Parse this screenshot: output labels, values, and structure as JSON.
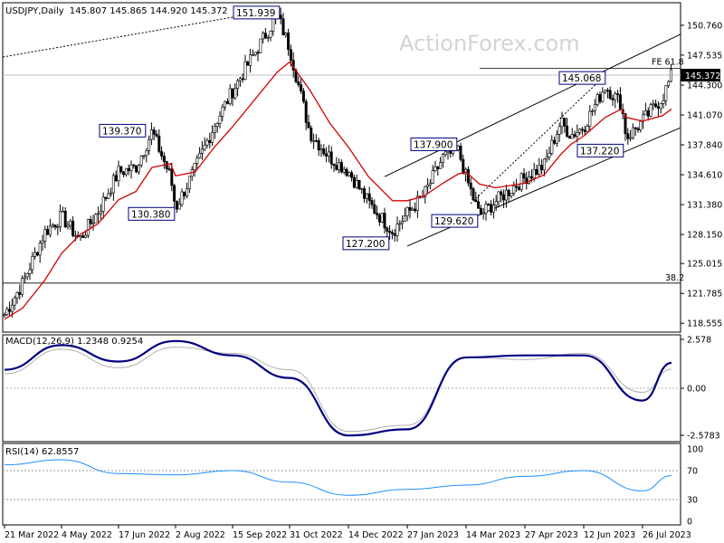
{
  "header": {
    "symbol": "USDJPY,Daily",
    "ohlc": "145.807 145.865 144.920 145.372"
  },
  "watermark": "ActionForex.com",
  "current_price_label": "145.372",
  "colors": {
    "candle": "#000000",
    "ma": "#d40000",
    "macd_line": "#000080",
    "macd_signal": "#b0b0b0",
    "rsi_line": "#1e90ff",
    "price_tag_bg": "#000000",
    "annotation_border": "#000080"
  },
  "chart_data": [
    {
      "type": "line",
      "name": "price",
      "title": "USDJPY,Daily",
      "x_ticks": [
        "21 Mar 2022",
        "4 May 2022",
        "17 Jun 2022",
        "2 Aug 2022",
        "15 Sep 2022",
        "31 Oct 2022",
        "14 Dec 2022",
        "27 Jan 2023",
        "14 Mar 2023",
        "27 Apr 2023",
        "12 Jun 2023",
        "26 Jul 2023"
      ],
      "y_ticks": [
        "150.760",
        "147.535",
        "144.300",
        "141.070",
        "137.840",
        "134.610",
        "131.380",
        "128.150",
        "125.015",
        "121.785",
        "118.555"
      ],
      "ylim": [
        117.6,
        153.2
      ],
      "x": [
        "21 Mar 2022",
        "4 Apr 2022",
        "21 Apr 2022",
        "4 May 2022",
        "18 May 2022",
        "1 Jun 2022",
        "17 Jun 2022",
        "1 Jul 2022",
        "14 Jul 2022",
        "29 Jul 2022",
        "2 Aug 2022",
        "17 Aug 2022",
        "1 Sep 2022",
        "15 Sep 2022",
        "21 Oct 2022",
        "31 Oct 2022",
        "15 Nov 2022",
        "30 Nov 2022",
        "14 Dec 2022",
        "29 Dec 2022",
        "16 Jan 2023",
        "27 Jan 2023",
        "9 Feb 2023",
        "24 Feb 2023",
        "8 Mar 2023",
        "14 Mar 2023",
        "24 Mar 2023",
        "5 Apr 2023",
        "27 Apr 2023",
        "12 May 2023",
        "25 May 2023",
        "2 Jun 2023",
        "12 Jun 2023",
        "28 Jun 2023",
        "10 Jul 2023",
        "14 Jul 2023",
        "26 Jul 2023",
        "4 Aug 2023",
        "8 Aug 2023"
      ],
      "close": [
        119.5,
        122.9,
        128.4,
        130.1,
        127.6,
        130.6,
        134.9,
        135.4,
        139.3,
        134.3,
        131.0,
        135.2,
        140.0,
        143.7,
        151.9,
        148.3,
        139.2,
        136.5,
        135.0,
        131.6,
        128.5,
        130.4,
        132.4,
        136.5,
        137.2,
        134.3,
        130.2,
        131.7,
        134.3,
        135.6,
        140.3,
        138.9,
        139.8,
        144.2,
        142.3,
        138.6,
        140.4,
        143.0,
        145.37
      ],
      "ma_close": [
        119.0,
        120.2,
        123.2,
        126.1,
        128.1,
        129.3,
        131.9,
        132.8,
        135.4,
        135.8,
        134.5,
        134.9,
        137.6,
        139.8,
        145.7,
        146.8,
        143.8,
        140.2,
        137.6,
        134.4,
        131.8,
        131.8,
        132.3,
        133.7,
        134.7,
        134.9,
        133.6,
        133.2,
        133.7,
        134.6,
        136.8,
        137.9,
        138.8,
        140.8,
        141.7,
        140.8,
        140.4,
        141.0,
        141.7
      ],
      "annotations": [
        "151.939",
        "139.370",
        "130.380",
        "137.900",
        "127.200",
        "129.620",
        "145.068",
        "137.220",
        "FE 61.8",
        "38.2"
      ]
    },
    {
      "type": "line",
      "name": "MACD",
      "title": "MACD(12,26,9) 1.2348 0.9254",
      "y_ticks": [
        "2.578",
        "0.00",
        "-2.5783"
      ],
      "ylim": [
        -2.6,
        2.6
      ],
      "x": [
        "21 Mar 2022",
        "4 May 2022",
        "17 Jun 2022",
        "2 Aug 2022",
        "15 Sep 2022",
        "31 Oct 2022",
        "14 Dec 2022",
        "27 Jan 2023",
        "14 Mar 2023",
        "27 Apr 2023",
        "12 Jun 2023",
        "26 Jul 2023",
        "8 Aug 2023"
      ],
      "series": [
        {
          "values": [
            0.9,
            2.1,
            1.3,
            2.3,
            1.6,
            0.5,
            -2.3,
            -2.0,
            1.5,
            1.6,
            1.6,
            -0.6,
            1.24
          ]
        },
        {
          "values": [
            0.7,
            1.9,
            1.0,
            2.0,
            1.7,
            0.9,
            -2.1,
            -1.8,
            1.5,
            1.4,
            1.7,
            -0.2,
            0.93
          ]
        }
      ]
    },
    {
      "type": "line",
      "name": "RSI",
      "title": "RSI(14) 62.8557",
      "y_ticks": [
        "100",
        "70",
        "30",
        "0"
      ],
      "ylim": [
        0,
        100
      ],
      "levels": [
        70,
        30
      ],
      "x": [
        "21 Mar 2022",
        "4 May 2022",
        "17 Jun 2022",
        "2 Aug 2022",
        "15 Sep 2022",
        "31 Oct 2022",
        "14 Dec 2022",
        "27 Jan 2023",
        "14 Mar 2023",
        "27 Apr 2023",
        "12 Jun 2023",
        "26 Jul 2023",
        "8 Aug 2023"
      ],
      "values": [
        78,
        85,
        66,
        64,
        70,
        54,
        36,
        44,
        50,
        62,
        70,
        42,
        63
      ]
    }
  ]
}
